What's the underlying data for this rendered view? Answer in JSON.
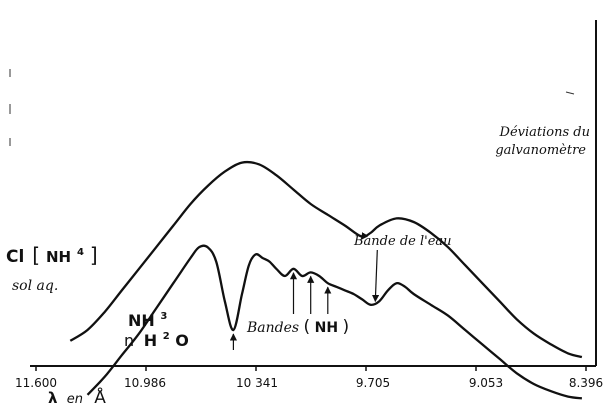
{
  "chart_data": {
    "type": "line",
    "xlabel_parts": {
      "lambda": "λ",
      "en": "en",
      "unit": "Å"
    },
    "ylabel_lines": [
      "Déviations du",
      "galvanomètre"
    ],
    "x_ticks": [
      "11.600",
      "10.986",
      "10 341",
      "9.705",
      "9.053",
      "8.396"
    ],
    "xlim": [
      11600,
      8396
    ],
    "series": [
      {
        "name": "Cl[NH4] sol aq.",
        "label_parts": {
          "cl": "Cl",
          "lb": "[",
          "nh": "NH",
          "sup": "4",
          "rb": "]",
          "sol": "sol aq."
        },
        "x": [
          11400,
          11300,
          11200,
          11100,
          11000,
          10900,
          10800,
          10700,
          10600,
          10500,
          10400,
          10300,
          10200,
          10100,
          10000,
          9900,
          9800,
          9705,
          9650,
          9600,
          9500,
          9400,
          9300,
          9200,
          9100,
          9000,
          8900,
          8800,
          8700,
          8600,
          8500,
          8420
        ],
        "y": [
          0.07,
          0.1,
          0.15,
          0.21,
          0.27,
          0.33,
          0.39,
          0.45,
          0.5,
          0.54,
          0.565,
          0.56,
          0.53,
          0.49,
          0.45,
          0.42,
          0.39,
          0.36,
          0.37,
          0.39,
          0.41,
          0.4,
          0.37,
          0.33,
          0.28,
          0.23,
          0.18,
          0.13,
          0.09,
          0.06,
          0.035,
          0.025
        ]
      },
      {
        "name": "NH3 n H2O",
        "label_parts": {
          "nh": "NH",
          "sup3": "3",
          "n": "n",
          "h": "H",
          "sup2": "2",
          "o": "O"
        },
        "x": [
          11300,
          11200,
          11100,
          11000,
          10900,
          10800,
          10700,
          10650,
          10600,
          10550,
          10500,
          10450,
          10400,
          10360,
          10320,
          10280,
          10240,
          10200,
          10150,
          10100,
          10050,
          10000,
          9950,
          9900,
          9850,
          9800,
          9750,
          9700,
          9650,
          9600,
          9550,
          9500,
          9450,
          9400,
          9300,
          9200,
          9100,
          9000,
          8900,
          8800,
          8700,
          8600,
          8500,
          8420
        ],
        "y": [
          -0.08,
          -0.03,
          0.03,
          0.09,
          0.16,
          0.23,
          0.3,
          0.33,
          0.33,
          0.29,
          0.18,
          0.1,
          0.2,
          0.28,
          0.31,
          0.3,
          0.29,
          0.27,
          0.25,
          0.27,
          0.25,
          0.26,
          0.25,
          0.23,
          0.22,
          0.21,
          0.2,
          0.185,
          0.17,
          0.18,
          0.21,
          0.23,
          0.22,
          0.2,
          0.17,
          0.14,
          0.1,
          0.06,
          0.02,
          -0.02,
          -0.05,
          -0.07,
          -0.085,
          -0.09
        ]
      }
    ],
    "annotations": {
      "bande_eau": "Bande de l'eau",
      "bandes_parts": {
        "word": "Bandes",
        "lp": "(",
        "nh": "NH",
        "rp": ")"
      }
    },
    "band_arrows_x": [
      10100,
      10000,
      9900
    ],
    "dip_arrow_x": 10450,
    "water_arrow_x": 9705
  }
}
